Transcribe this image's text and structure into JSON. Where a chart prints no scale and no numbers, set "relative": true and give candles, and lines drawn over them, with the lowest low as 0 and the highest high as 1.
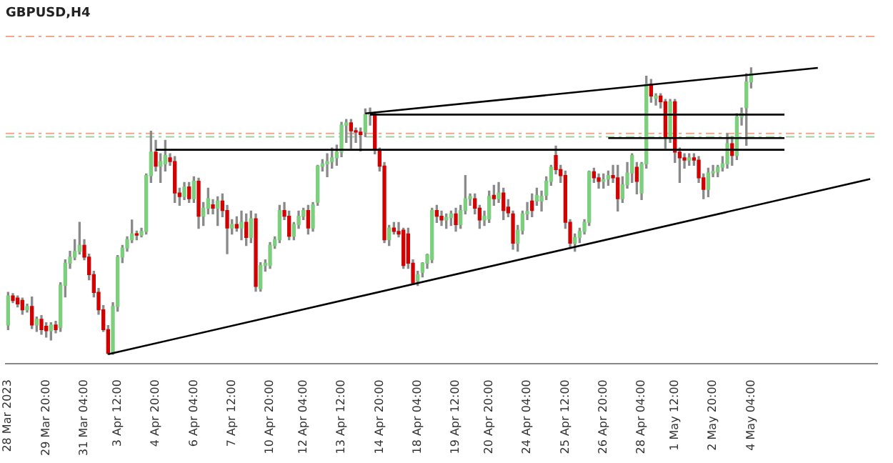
{
  "chart_data": {
    "type": "candlestick",
    "title": "GBPUSD,H4",
    "relative": true,
    "grid": false,
    "legend": false,
    "tick_labels": "x",
    "categories": [
      "28 Mar 2023",
      null,
      null,
      null,
      null,
      null,
      null,
      null,
      "29 Mar 20:00",
      null,
      null,
      null,
      null,
      null,
      null,
      null,
      "31 Mar 04:00",
      null,
      null,
      null,
      null,
      null,
      null,
      "3 Apr 12:00",
      null,
      null,
      null,
      null,
      null,
      null,
      null,
      "4 Apr 20:00",
      null,
      null,
      null,
      null,
      null,
      null,
      null,
      "6 Apr 04:00",
      null,
      null,
      null,
      null,
      null,
      null,
      null,
      "7 Apr 12:00",
      null,
      null,
      null,
      null,
      null,
      null,
      null,
      "10 Apr 20:00",
      null,
      null,
      null,
      null,
      null,
      null,
      "12 Apr 04:00",
      null,
      null,
      null,
      null,
      null,
      null,
      null,
      "13 Apr 12:00",
      null,
      null,
      null,
      null,
      null,
      null,
      null,
      "14 Apr 20:00",
      null,
      null,
      null,
      null,
      null,
      null,
      null,
      "18 Apr 04:00",
      null,
      null,
      null,
      null,
      null,
      null,
      null,
      "19 Apr 12:00",
      null,
      null,
      null,
      null,
      null,
      null,
      "20 Apr 20:00",
      null,
      null,
      null,
      null,
      null,
      null,
      null,
      "24 Apr 04:00",
      null,
      null,
      null,
      null,
      null,
      null,
      null,
      "25 Apr 12:00",
      null,
      null,
      null,
      null,
      null,
      null,
      null,
      "26 Apr 20:00",
      null,
      null,
      null,
      null,
      null,
      null,
      null,
      "28 Apr 04:00",
      null,
      null,
      null,
      null,
      null,
      null,
      "1 May 12:00",
      null,
      null,
      null,
      null,
      null,
      null,
      null,
      "2 May 20:00",
      null,
      null,
      null,
      null,
      null,
      null,
      null,
      "4 May 04:00",
      null,
      null,
      null,
      null,
      null,
      null,
      null,
      null,
      null,
      null,
      null,
      null,
      null,
      null,
      null,
      null,
      null,
      null,
      null,
      null,
      null,
      null,
      null,
      null,
      null,
      null
    ],
    "ohlc": [
      [
        0.102,
        0.216,
        0.086,
        0.204
      ],
      [
        0.204,
        0.212,
        0.18,
        0.188
      ],
      [
        0.196,
        0.204,
        0.165,
        0.176
      ],
      [
        0.188,
        0.196,
        0.14,
        0.155
      ],
      [
        0.155,
        0.175,
        0.147,
        0.167
      ],
      [
        0.167,
        0.2,
        0.09,
        0.102
      ],
      [
        0.102,
        0.13,
        0.08,
        0.122
      ],
      [
        0.122,
        0.135,
        0.07,
        0.086
      ],
      [
        0.098,
        0.11,
        0.06,
        0.082
      ],
      [
        0.082,
        0.11,
        0.05,
        0.102
      ],
      [
        0.102,
        0.115,
        0.075,
        0.086
      ],
      [
        0.094,
        0.25,
        0.08,
        0.241
      ],
      [
        0.241,
        0.33,
        0.2,
        0.318
      ],
      [
        0.318,
        0.36,
        0.3,
        0.339
      ],
      [
        0.339,
        0.4,
        0.33,
        0.359
      ],
      [
        0.359,
        0.461,
        0.35,
        0.38
      ],
      [
        0.38,
        0.4,
        0.33,
        0.339
      ],
      [
        0.339,
        0.35,
        0.26,
        0.278
      ],
      [
        0.278,
        0.29,
        0.2,
        0.216
      ],
      [
        0.216,
        0.23,
        0.14,
        0.155
      ],
      [
        0.155,
        0.17,
        0.08,
        0.086
      ],
      [
        0.086,
        0.1,
        0,
        0.004
      ],
      [
        0.004,
        0.18,
        0,
        0.167
      ],
      [
        0.167,
        0.345,
        0.15,
        0.339
      ],
      [
        0.339,
        0.38,
        0.32,
        0.371
      ],
      [
        0.371,
        0.41,
        0.36,
        0.4
      ],
      [
        0.4,
        0.469,
        0.39,
        0.42
      ],
      [
        0.42,
        0.43,
        0.4,
        0.416
      ],
      [
        0.416,
        0.44,
        0.41,
        0.429
      ],
      [
        0.429,
        0.63,
        0.42,
        0.624
      ],
      [
        0.624,
        0.779,
        0.6,
        0.706
      ],
      [
        0.706,
        0.747,
        0.64,
        0.657
      ],
      [
        0.657,
        0.7,
        0.6,
        0.673
      ],
      [
        0.665,
        0.747,
        0.64,
        0.694
      ],
      [
        0.686,
        0.7,
        0.66,
        0.673
      ],
      [
        0.673,
        0.69,
        0.53,
        0.563
      ],
      [
        0.563,
        0.58,
        0.52,
        0.551
      ],
      [
        0.551,
        0.6,
        0.54,
        0.584
      ],
      [
        0.584,
        0.6,
        0.53,
        0.543
      ],
      [
        0.543,
        0.62,
        0.53,
        0.604
      ],
      [
        0.604,
        0.615,
        0.44,
        0.482
      ],
      [
        0.482,
        0.53,
        0.45,
        0.51
      ],
      [
        0.51,
        0.58,
        0.49,
        0.543
      ],
      [
        0.522,
        0.54,
        0.49,
        0.51
      ],
      [
        0.51,
        0.55,
        0.45,
        0.535
      ],
      [
        0.535,
        0.56,
        0.48,
        0.502
      ],
      [
        0.502,
        0.52,
        0.351,
        0.441
      ],
      [
        0.441,
        0.47,
        0.42,
        0.453
      ],
      [
        0.453,
        0.48,
        0.43,
        0.441
      ],
      [
        0.441,
        0.5,
        0.4,
        0.461
      ],
      [
        0.461,
        0.49,
        0.38,
        0.408
      ],
      [
        0.408,
        0.5,
        0.39,
        0.473
      ],
      [
        0.473,
        0.49,
        0.22,
        0.237
      ],
      [
        0.229,
        0.32,
        0.22,
        0.31
      ],
      [
        0.31,
        0.33,
        0.29,
        0.318
      ],
      [
        0.31,
        0.39,
        0.3,
        0.38
      ],
      [
        0.38,
        0.41,
        0.37,
        0.4
      ],
      [
        0.4,
        0.52,
        0.39,
        0.502
      ],
      [
        0.502,
        0.53,
        0.47,
        0.482
      ],
      [
        0.482,
        0.5,
        0.4,
        0.412
      ],
      [
        0.412,
        0.46,
        0.4,
        0.453
      ],
      [
        0.453,
        0.5,
        0.44,
        0.482
      ],
      [
        0.482,
        0.51,
        0.47,
        0.502
      ],
      [
        0.502,
        0.52,
        0.42,
        0.441
      ],
      [
        0.441,
        0.53,
        0.43,
        0.522
      ],
      [
        0.531,
        0.66,
        0.52,
        0.657
      ],
      [
        0.657,
        0.68,
        0.64,
        0.665
      ],
      [
        0.665,
        0.7,
        0.62,
        0.673
      ],
      [
        0.673,
        0.72,
        0.65,
        0.686
      ],
      [
        0.686,
        0.73,
        0.66,
        0.706
      ],
      [
        0.706,
        0.81,
        0.69,
        0.8
      ],
      [
        0.8,
        0.82,
        0.74,
        0.808
      ],
      [
        0.808,
        0.82,
        0.72,
        0.78
      ],
      [
        0.78,
        0.79,
        0.74,
        0.776
      ],
      [
        0.776,
        0.79,
        0.71,
        0.767
      ],
      [
        0.776,
        0.857,
        0.76,
        0.837
      ],
      [
        0.837,
        0.86,
        0.8,
        0.841
      ],
      [
        0.837,
        0.845,
        0.7,
        0.714
      ],
      [
        0.714,
        0.72,
        0.64,
        0.657
      ],
      [
        0.657,
        0.67,
        0.39,
        0.4
      ],
      [
        0.4,
        0.45,
        0.38,
        0.441
      ],
      [
        0.441,
        0.46,
        0.42,
        0.429
      ],
      [
        0.429,
        0.46,
        0.41,
        0.42
      ],
      [
        0.433,
        0.44,
        0.3,
        0.31
      ],
      [
        0.42,
        0.44,
        0.3,
        0.318
      ],
      [
        0.318,
        0.33,
        0.245,
        0.249
      ],
      [
        0.257,
        0.29,
        0.24,
        0.278
      ],
      [
        0.286,
        0.32,
        0.27,
        0.318
      ],
      [
        0.318,
        0.35,
        0.3,
        0.347
      ],
      [
        0.331,
        0.51,
        0.32,
        0.502
      ],
      [
        0.502,
        0.52,
        0.46,
        0.482
      ],
      [
        0.482,
        0.5,
        0.45,
        0.469
      ],
      [
        0.469,
        0.49,
        0.44,
        0.478
      ],
      [
        0.478,
        0.5,
        0.45,
        0.49
      ],
      [
        0.49,
        0.51,
        0.43,
        0.453
      ],
      [
        0.453,
        0.52,
        0.44,
        0.502
      ],
      [
        0.502,
        0.624,
        0.49,
        0.543
      ],
      [
        0.543,
        0.56,
        0.52,
        0.551
      ],
      [
        0.543,
        0.56,
        0.49,
        0.51
      ],
      [
        0.51,
        0.52,
        0.44,
        0.469
      ],
      [
        0.469,
        0.5,
        0.45,
        0.482
      ],
      [
        0.473,
        0.57,
        0.46,
        0.551
      ],
      [
        0.555,
        0.59,
        0.52,
        0.543
      ],
      [
        0.543,
        0.6,
        0.53,
        0.563
      ],
      [
        0.563,
        0.58,
        0.47,
        0.502
      ],
      [
        0.514,
        0.54,
        0.48,
        0.494
      ],
      [
        0.49,
        0.5,
        0.367,
        0.388
      ],
      [
        0.388,
        0.45,
        0.36,
        0.433
      ],
      [
        0.433,
        0.5,
        0.42,
        0.49
      ],
      [
        0.49,
        0.53,
        0.47,
        0.498
      ],
      [
        0.535,
        0.56,
        0.48,
        0.502
      ],
      [
        0.535,
        0.58,
        0.52,
        0.555
      ],
      [
        0.535,
        0.57,
        0.5,
        0.551
      ],
      [
        0.555,
        0.62,
        0.54,
        0.604
      ],
      [
        0.604,
        0.66,
        0.59,
        0.653
      ],
      [
        0.694,
        0.727,
        0.63,
        0.645
      ],
      [
        0.645,
        0.66,
        0.6,
        0.624
      ],
      [
        0.624,
        0.64,
        0.44,
        0.461
      ],
      [
        0.461,
        0.47,
        0.37,
        0.388
      ],
      [
        0.388,
        0.42,
        0.36,
        0.408
      ],
      [
        0.408,
        0.44,
        0.39,
        0.429
      ],
      [
        0.429,
        0.47,
        0.42,
        0.461
      ],
      [
        0.461,
        0.64,
        0.45,
        0.637
      ],
      [
        0.637,
        0.65,
        0.6,
        0.616
      ],
      [
        0.616,
        0.63,
        0.58,
        0.604
      ],
      [
        0.604,
        0.63,
        0.58,
        0.608
      ],
      [
        0.612,
        0.64,
        0.59,
        0.624
      ],
      [
        0.624,
        0.66,
        0.6,
        0.616
      ],
      [
        0.616,
        0.66,
        0.5,
        0.543
      ],
      [
        0.543,
        0.62,
        0.53,
        0.592
      ],
      [
        0.592,
        0.67,
        0.58,
        0.633
      ],
      [
        0.633,
        0.7,
        0.6,
        0.694
      ],
      [
        0.653,
        0.67,
        0.56,
        0.604
      ],
      [
        0.563,
        0.67,
        0.54,
        0.665
      ],
      [
        0.665,
        0.971,
        0.65,
        0.943
      ],
      [
        0.943,
        0.96,
        0.88,
        0.902
      ],
      [
        0.894,
        0.91,
        0.87,
        0.902
      ],
      [
        0.902,
        0.91,
        0.86,
        0.882
      ],
      [
        0.882,
        0.89,
        0.72,
        0.759
      ],
      [
        0.759,
        0.89,
        0.74,
        0.882
      ],
      [
        0.882,
        0.89,
        0.67,
        0.706
      ],
      [
        0.706,
        0.72,
        0.6,
        0.686
      ],
      [
        0.686,
        0.7,
        0.65,
        0.678
      ],
      [
        0.678,
        0.7,
        0.66,
        0.686
      ],
      [
        0.686,
        0.7,
        0.66,
        0.678
      ],
      [
        0.678,
        0.69,
        0.6,
        0.616
      ],
      [
        0.616,
        0.63,
        0.543,
        0.576
      ],
      [
        0.576,
        0.65,
        0.55,
        0.633
      ],
      [
        0.633,
        0.66,
        0.62,
        0.637
      ],
      [
        0.637,
        0.66,
        0.62,
        0.653
      ],
      [
        0.653,
        0.69,
        0.64,
        0.665
      ],
      [
        0.665,
        0.77,
        0.65,
        0.735
      ],
      [
        0.735,
        0.76,
        0.66,
        0.694
      ],
      [
        0.694,
        0.84,
        0.68,
        0.829
      ],
      [
        0.829,
        0.86,
        0.8,
        0.841
      ],
      [
        0.861,
        0.98,
        0.73,
        0.951
      ],
      [
        0.951,
        1.0,
        0.93,
        0.98
      ],
      null,
      null,
      null,
      null,
      null,
      null,
      null,
      null,
      null,
      null,
      null,
      null,
      null,
      null,
      null,
      null,
      null,
      null,
      null,
      null,
      null,
      null,
      null,
      null,
      null,
      null
    ],
    "series": [
      {
        "type": "line",
        "color": "#000000",
        "values": [
          null,
          null,
          null,
          null,
          null,
          null,
          null,
          null,
          null,
          null,
          null,
          null,
          null,
          null,
          null,
          null,
          null,
          null,
          null,
          null,
          null,
          null,
          null,
          null,
          null,
          null,
          null,
          null,
          null,
          null,
          null,
          null,
          null,
          null,
          null,
          null,
          null,
          null,
          null,
          null,
          null,
          null,
          null,
          null,
          null,
          null,
          null,
          null,
          null,
          null,
          null,
          null,
          null,
          null,
          null,
          null,
          null,
          null,
          null,
          null,
          null,
          null,
          null,
          null,
          null,
          null,
          null,
          null,
          null,
          null,
          null,
          null,
          null,
          null,
          null,
          0.841,
          null,
          null,
          null,
          null,
          null,
          null,
          null,
          null,
          null,
          null,
          null,
          null,
          null,
          null,
          null,
          null,
          null,
          null,
          null,
          null,
          null,
          null,
          null,
          null,
          null,
          null,
          null,
          null,
          null,
          null,
          null,
          null,
          null,
          null,
          null,
          null,
          null,
          null,
          null,
          null,
          null,
          null,
          null,
          null,
          null,
          null,
          null,
          null,
          null,
          null,
          null,
          null,
          null,
          null,
          null,
          null,
          null,
          null,
          null,
          null,
          null,
          null,
          null,
          null,
          null,
          null,
          null,
          null,
          null,
          null,
          null,
          null,
          null,
          null,
          null,
          null,
          null,
          null,
          null,
          null,
          null,
          null,
          null,
          null,
          null,
          null,
          null,
          null,
          null,
          null,
          null,
          null,
          null,
          null,
          1.0,
          null,
          null,
          null,
          null,
          null,
          null,
          null,
          null,
          null,
          null,
          null,
          null
        ]
      },
      {
        "type": "line",
        "color": "#000000",
        "values": [
          null,
          null,
          null,
          null,
          null,
          null,
          null,
          null,
          null,
          null,
          null,
          null,
          null,
          null,
          null,
          null,
          null,
          null,
          null,
          null,
          null,
          0,
          null,
          null,
          null,
          null,
          null,
          null,
          null,
          null,
          null,
          null,
          null,
          null,
          null,
          null,
          null,
          null,
          null,
          null,
          null,
          null,
          null,
          null,
          null,
          null,
          null,
          null,
          null,
          null,
          null,
          null,
          null,
          null,
          null,
          null,
          null,
          null,
          null,
          null,
          null,
          null,
          null,
          null,
          null,
          null,
          null,
          null,
          null,
          null,
          null,
          null,
          null,
          null,
          null,
          null,
          null,
          null,
          null,
          null,
          null,
          null,
          null,
          null,
          null,
          null,
          null,
          null,
          null,
          null,
          null,
          null,
          null,
          null,
          null,
          null,
          null,
          null,
          null,
          null,
          null,
          null,
          null,
          null,
          null,
          null,
          null,
          null,
          null,
          null,
          null,
          null,
          null,
          null,
          null,
          null,
          null,
          null,
          null,
          null,
          null,
          null,
          null,
          null,
          null,
          null,
          null,
          null,
          null,
          null,
          null,
          null,
          null,
          null,
          null,
          null,
          null,
          null,
          null,
          null,
          null,
          null,
          null,
          null,
          null,
          null,
          null,
          null,
          null,
          null,
          null,
          null,
          null,
          null,
          null,
          null,
          null,
          null,
          null,
          null,
          null,
          null,
          null,
          null,
          null,
          null,
          null,
          null,
          null,
          null,
          null,
          null,
          null,
          null,
          null,
          null,
          null,
          null,
          null,
          null,
          null,
          0.612,
          null
        ]
      },
      {
        "type": "line",
        "color": "#000000",
        "values": [
          null,
          null,
          null,
          null,
          null,
          null,
          null,
          null,
          null,
          null,
          null,
          null,
          null,
          null,
          null,
          null,
          null,
          null,
          null,
          null,
          null,
          null,
          null,
          null,
          null,
          null,
          null,
          null,
          null,
          null,
          null,
          null,
          null,
          null,
          null,
          null,
          null,
          null,
          null,
          null,
          null,
          null,
          null,
          null,
          null,
          null,
          null,
          null,
          null,
          null,
          null,
          null,
          null,
          null,
          null,
          null,
          null,
          null,
          null,
          null,
          null,
          null,
          null,
          null,
          null,
          null,
          null,
          null,
          null,
          null,
          null,
          null,
          null,
          null,
          null,
          null,
          0.837,
          null,
          null,
          null,
          null,
          null,
          null,
          null,
          null,
          null,
          null,
          null,
          null,
          null,
          null,
          null,
          null,
          null,
          null,
          null,
          null,
          null,
          null,
          null,
          null,
          null,
          null,
          null,
          null,
          null,
          null,
          null,
          null,
          null,
          null,
          null,
          null,
          null,
          null,
          null,
          null,
          null,
          null,
          null,
          null,
          null,
          null,
          null,
          null,
          null,
          null,
          null,
          null,
          null,
          null,
          null,
          null,
          null,
          null,
          null,
          null,
          null,
          null,
          null,
          null,
          null,
          null,
          null,
          null,
          null,
          null,
          null,
          null,
          null,
          null,
          null,
          null,
          null,
          null,
          null,
          null,
          null,
          null,
          null,
          null,
          null,
          null,
          0.837,
          null,
          null,
          null,
          null,
          null,
          null,
          null,
          null,
          null,
          null,
          null,
          null,
          null,
          null,
          null,
          null,
          null,
          null,
          null
        ]
      },
      {
        "type": "line",
        "color": "#000000",
        "values": [
          null,
          null,
          null,
          null,
          null,
          null,
          null,
          null,
          null,
          null,
          null,
          null,
          null,
          null,
          null,
          null,
          null,
          null,
          null,
          null,
          null,
          null,
          null,
          null,
          null,
          null,
          null,
          null,
          null,
          null,
          null,
          0.714,
          null,
          null,
          null,
          null,
          null,
          null,
          null,
          null,
          null,
          null,
          null,
          null,
          null,
          null,
          null,
          null,
          null,
          null,
          null,
          null,
          null,
          null,
          null,
          null,
          null,
          null,
          null,
          null,
          null,
          null,
          null,
          null,
          null,
          null,
          null,
          null,
          null,
          null,
          null,
          null,
          null,
          null,
          null,
          null,
          null,
          null,
          null,
          null,
          null,
          null,
          null,
          null,
          null,
          null,
          null,
          null,
          null,
          null,
          null,
          null,
          null,
          null,
          null,
          null,
          null,
          null,
          null,
          null,
          null,
          null,
          null,
          null,
          null,
          null,
          null,
          null,
          null,
          null,
          null,
          null,
          null,
          null,
          null,
          null,
          null,
          null,
          null,
          null,
          null,
          null,
          null,
          null,
          null,
          null,
          null,
          null,
          null,
          null,
          null,
          null,
          null,
          null,
          null,
          null,
          null,
          null,
          null,
          null,
          null,
          null,
          null,
          null,
          null,
          null,
          null,
          null,
          null,
          null,
          null,
          null,
          null,
          null,
          null,
          null,
          null,
          null,
          null,
          null,
          null,
          null,
          null,
          0.714,
          null,
          null,
          null,
          null,
          null,
          null,
          null,
          null,
          null,
          null,
          null,
          null,
          null,
          null,
          null,
          null,
          null,
          null,
          null
        ]
      },
      {
        "type": "line",
        "color": "#000000",
        "values": [
          null,
          null,
          null,
          null,
          null,
          null,
          null,
          null,
          null,
          null,
          null,
          null,
          null,
          null,
          null,
          null,
          null,
          null,
          null,
          null,
          null,
          null,
          null,
          null,
          null,
          null,
          null,
          null,
          null,
          null,
          null,
          null,
          null,
          null,
          null,
          null,
          null,
          null,
          null,
          null,
          null,
          null,
          null,
          null,
          null,
          null,
          null,
          null,
          null,
          null,
          null,
          null,
          null,
          null,
          null,
          null,
          null,
          null,
          null,
          null,
          null,
          null,
          null,
          null,
          null,
          null,
          null,
          null,
          null,
          null,
          null,
          null,
          null,
          null,
          null,
          null,
          null,
          null,
          null,
          null,
          null,
          null,
          null,
          null,
          null,
          null,
          null,
          null,
          null,
          null,
          null,
          null,
          null,
          null,
          null,
          null,
          null,
          null,
          null,
          null,
          null,
          null,
          null,
          null,
          null,
          null,
          null,
          null,
          null,
          null,
          null,
          null,
          null,
          null,
          null,
          null,
          null,
          null,
          null,
          null,
          null,
          null,
          null,
          null,
          null,
          null,
          0.755,
          null,
          null,
          null,
          null,
          null,
          null,
          null,
          null,
          null,
          null,
          null,
          null,
          null,
          null,
          null,
          null,
          null,
          null,
          null,
          null,
          null,
          null,
          null,
          null,
          null,
          null,
          null,
          null,
          null,
          null,
          null,
          null,
          null,
          null,
          null,
          null,
          0.755,
          null,
          null,
          null,
          null,
          null,
          null,
          null,
          null,
          null,
          null,
          null,
          null,
          null,
          null,
          null,
          null,
          null,
          null,
          null
        ]
      }
    ],
    "ref_lines": [
      {
        "axis": "y",
        "value": 1.11,
        "color": "#f4a58a",
        "line_style": "dashed"
      },
      {
        "axis": "y",
        "value": 0.771,
        "color": "#f4a58a",
        "line_style": "dashed"
      },
      {
        "axis": "y",
        "value": 0.759,
        "color": "#9bd49b",
        "line_style": "dashed"
      }
    ]
  }
}
